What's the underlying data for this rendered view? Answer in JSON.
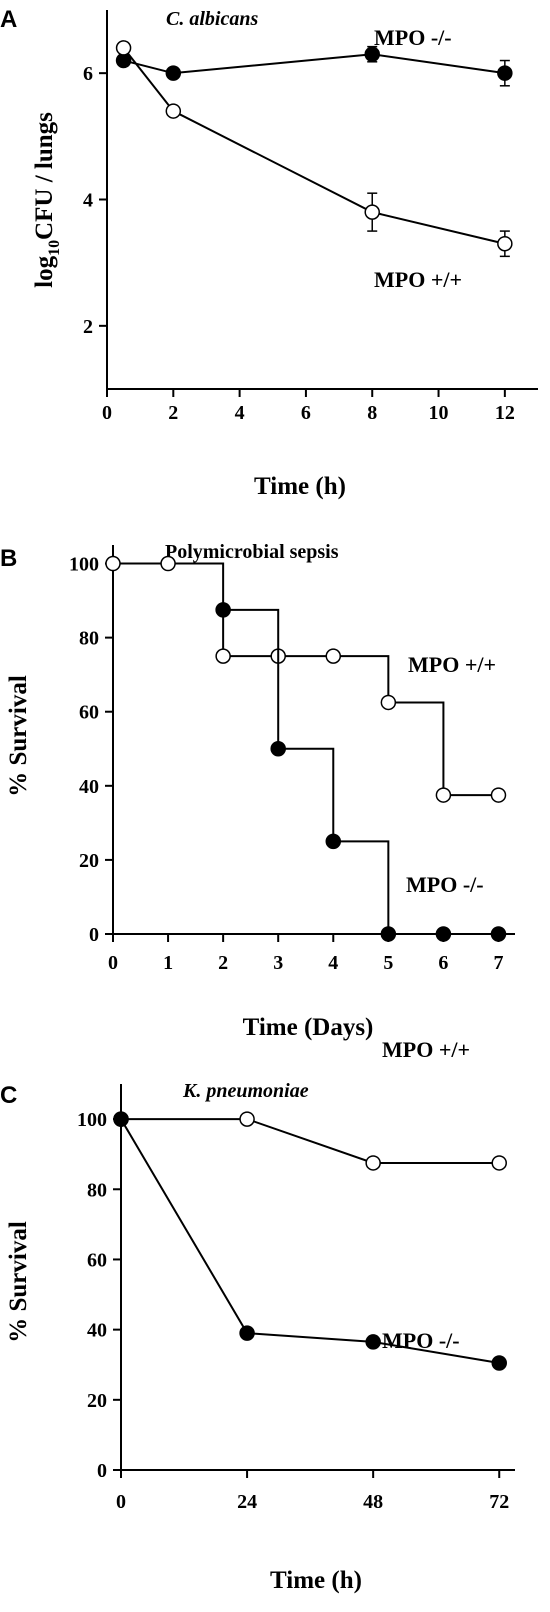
{
  "chart_data": [
    {
      "panel_label": "A",
      "type": "line",
      "title": "C. albicans",
      "xlabel": "Time (h)",
      "ylabel_parts": {
        "pre": "log",
        "sub": "10",
        "post": "CFU / lungs"
      },
      "xlim": [
        0,
        13
      ],
      "ylim": [
        1,
        7
      ],
      "xticks": [
        0,
        2,
        4,
        6,
        8,
        10,
        12
      ],
      "yticks": [
        2,
        4,
        6
      ],
      "grid": false,
      "series": [
        {
          "name": "MPO -/-",
          "marker": "filled",
          "step": false,
          "x": [
            0.5,
            2,
            8,
            12
          ],
          "y": [
            6.2,
            6.0,
            6.3,
            6.0
          ],
          "err": [
            0.08,
            0.08,
            0.12,
            0.2
          ]
        },
        {
          "name": "MPO +/+",
          "marker": "open",
          "step": false,
          "x": [
            0.5,
            2,
            8,
            12
          ],
          "y": [
            6.4,
            5.4,
            3.8,
            3.3
          ],
          "err": [
            0.05,
            0.05,
            0.3,
            0.2
          ]
        }
      ]
    },
    {
      "panel_label": "B",
      "type": "line",
      "title": "Polymicrobial sepsis",
      "xlabel": "Time (Days)",
      "ylabel": "% Survival",
      "xlim": [
        0,
        7.3
      ],
      "ylim": [
        0,
        105
      ],
      "xticks": [
        0,
        1,
        2,
        3,
        4,
        5,
        6,
        7
      ],
      "yticks": [
        0,
        20,
        40,
        60,
        80,
        100
      ],
      "grid": false,
      "series": [
        {
          "name": "MPO +/+",
          "marker": "open",
          "step": true,
          "x": [
            0,
            1,
            2,
            3,
            4,
            5,
            6,
            7
          ],
          "y": [
            100,
            100,
            75,
            75,
            75,
            62.5,
            37.5,
            37.5
          ]
        },
        {
          "name": "MPO -/-",
          "marker": "filled",
          "step": true,
          "x": [
            2,
            3,
            4,
            5,
            6,
            7
          ],
          "y": [
            87.5,
            50,
            25,
            0,
            0,
            0
          ]
        }
      ]
    },
    {
      "panel_label": "C",
      "type": "line",
      "title": "K. pneumoniae",
      "xlabel": "Time (h)",
      "ylabel": "% Survival",
      "xlim": [
        0,
        75
      ],
      "ylim": [
        0,
        110
      ],
      "xticks": [
        0,
        24,
        48,
        72
      ],
      "yticks": [
        0,
        20,
        40,
        60,
        80,
        100
      ],
      "grid": false,
      "series": [
        {
          "name": "MPO +/+",
          "marker": "open",
          "step": false,
          "x": [
            0,
            24,
            48,
            72
          ],
          "y": [
            100,
            100,
            87.5,
            87.5
          ]
        },
        {
          "name": "MPO -/-",
          "marker": "filled",
          "step": false,
          "x": [
            0,
            24,
            48,
            72
          ],
          "y": [
            100,
            39,
            36.5,
            30.5
          ]
        }
      ]
    }
  ]
}
